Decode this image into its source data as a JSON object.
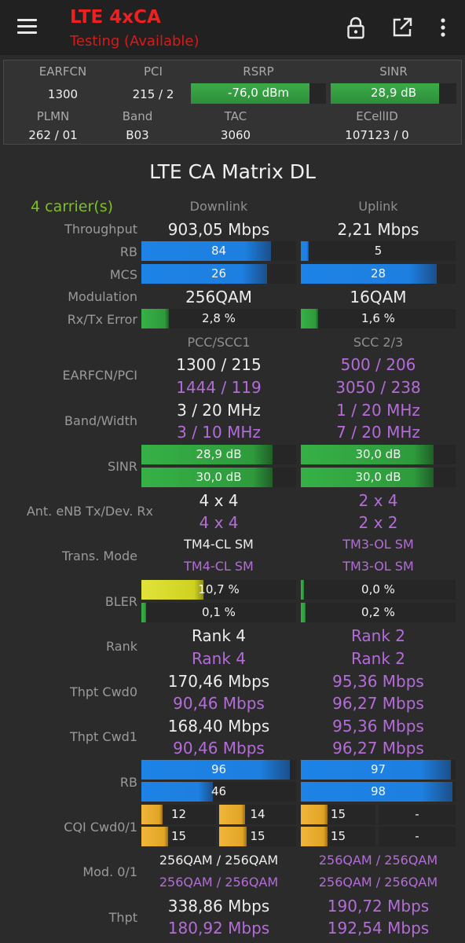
{
  "appbar": {
    "title": "LTE 4xCA",
    "subtitle": "Testing (Available)",
    "icons": [
      "menu-icon",
      "lock-icon",
      "open-external-icon",
      "more-vert-icon"
    ]
  },
  "info": {
    "earfcn_label": "EARFCN",
    "earfcn": "1300",
    "pci_label": "PCI",
    "pci": "215 / 2",
    "rsrp_label": "RSRP",
    "rsrp": "-76,0 dBm",
    "rsrp_level": 0.88,
    "sinr_label": "SINR",
    "sinr": "28,9 dB",
    "sinr_level": 0.86,
    "plmn_label": "PLMN",
    "plmn": "262 / 01",
    "band_label": "Band",
    "band": "B03",
    "tac_label": "TAC",
    "tac": "3060",
    "ecellid_label": "ECellID",
    "ecellid": "107123 / 0"
  },
  "matrix": {
    "title": "LTE CA Matrix DL",
    "carriers": "4 carrier(s)",
    "downlink_header": "Downlink",
    "uplink_header": "Uplink",
    "labels": {
      "throughput": "Throughput",
      "rb": "RB",
      "mcs": "MCS",
      "modulation": "Modulation",
      "rxtx_error": "Rx/Tx Error",
      "earfcn_pci": "EARFCN/PCI",
      "band_width": "Band/Width",
      "sinr": "SINR",
      "ant": "Ant. eNB Tx/Dev. Rx",
      "trans_mode": "Trans. Mode",
      "bler": "BLER",
      "rank": "Rank",
      "thpt_cwd0": "Thpt Cwd0",
      "thpt_cwd1": "Thpt Cwd1",
      "rb2": "RB",
      "cqi": "CQI Cwd0/1",
      "mod01": "Mod. 0/1",
      "thpt": "Thpt"
    },
    "throughput_dl": "903,05 Mbps",
    "throughput_ul": "2,21 Mbps",
    "rb_dl": "84",
    "rb_dl_level": 0.84,
    "rb_ul": "5",
    "rb_ul_level": 0.05,
    "mcs_dl": "26",
    "mcs_dl_level": 0.81,
    "mcs_ul": "28",
    "mcs_ul_level": 0.88,
    "modulation_dl": "256QAM",
    "modulation_ul": "16QAM",
    "err_dl": "2,8 %",
    "err_dl_level": 0.18,
    "err_ul": "1,6 %",
    "err_ul_level": 0.11,
    "pcc_header": "PCC/SCC1",
    "scc_header": "SCC 2/3",
    "earfcn_pci": [
      "1300 / 215",
      "1444 / 119",
      "500 / 206",
      "3050 / 238"
    ],
    "band_width": [
      "3 / 20 MHz",
      "3 / 10 MHz",
      "1 / 20 MHz",
      "7 / 20 MHz"
    ],
    "sinr": [
      "28,9 dB",
      "30,0 dB",
      "30,0 dB",
      "30,0 dB"
    ],
    "sinr_levels": [
      0.85,
      0.85,
      0.86,
      0.86
    ],
    "ant": [
      "4 x 4",
      "4 x 4",
      "2 x 4",
      "2 x 2"
    ],
    "trans_mode": [
      "TM4-CL SM",
      "TM4-CL SM",
      "TM3-OL SM",
      "TM3-OL SM"
    ],
    "bler": [
      "10,7 %",
      "0,1 %",
      "0,0 %",
      "0,2 %"
    ],
    "bler_levels": [
      0.4,
      0.03,
      0.02,
      0.03
    ],
    "rank": [
      "Rank 4",
      "Rank 4",
      "Rank 2",
      "Rank 2"
    ],
    "thpt_cwd0": [
      "170,46 Mbps",
      "90,46 Mbps",
      "95,36 Mbps",
      "96,27 Mbps"
    ],
    "thpt_cwd1": [
      "168,40 Mbps",
      "90,46 Mbps",
      "95,36 Mbps",
      "96,27 Mbps"
    ],
    "rb2": [
      "96",
      "46",
      "97",
      "98"
    ],
    "rb2_levels": [
      0.96,
      0.46,
      0.97,
      0.98
    ],
    "cqi": [
      "12",
      "14",
      "15",
      "15",
      "15",
      "-",
      "15",
      "-"
    ],
    "cqi_levels": [
      0.8,
      0.93,
      1.0,
      1.0,
      1.0,
      0,
      1.0,
      0
    ],
    "mod01": [
      "256QAM / 256QAM",
      "256QAM / 256QAM",
      "256QAM / 256QAM",
      "256QAM / 256QAM"
    ],
    "thpt": [
      "338,86 Mbps",
      "180,92 Mbps",
      "190,72 Mbps",
      "192,54 Mbps"
    ]
  },
  "colors": {
    "title_red": "#ee2020",
    "secondary_purple": "#b46cd8",
    "carriers_green": "#7ac31e",
    "bar_blue": "#1f7ee0",
    "bar_green": "#2e9a3c",
    "bar_yellow": "#d7d925",
    "bar_amber": "#e9ac2a"
  }
}
